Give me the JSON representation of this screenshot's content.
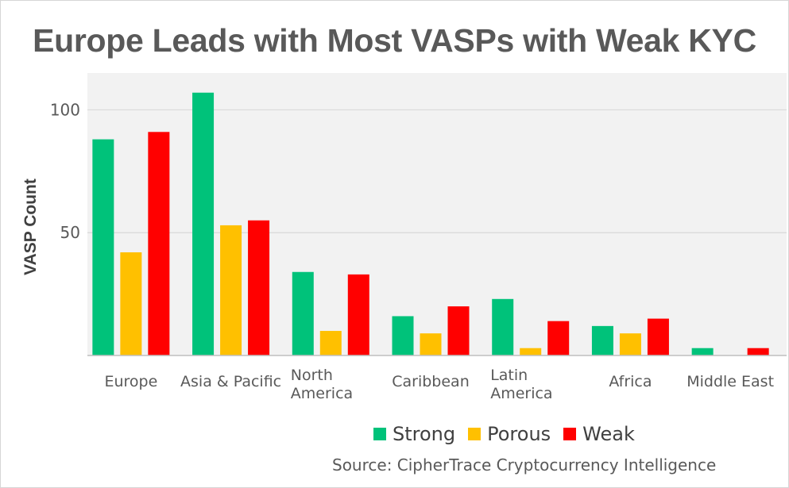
{
  "chart_data": {
    "type": "bar",
    "title": "Europe Leads with Most VASPs with Weak KYC",
    "ylabel": "VASP Count",
    "xlabel": "",
    "ylim": [
      0,
      115
    ],
    "yticks": [
      50,
      100
    ],
    "categories": [
      [
        "Europe"
      ],
      [
        "Asia & Pacific"
      ],
      [
        "North",
        "America"
      ],
      [
        "Caribbean"
      ],
      [
        "Latin",
        "America"
      ],
      [
        "Africa"
      ],
      [
        "Middle East"
      ]
    ],
    "series": [
      {
        "name": "Strong",
        "color": "#00c27a",
        "values": [
          88,
          107,
          34,
          16,
          23,
          12,
          3
        ]
      },
      {
        "name": "Porous",
        "color": "#ffc000",
        "values": [
          42,
          53,
          10,
          9,
          3,
          9,
          0
        ]
      },
      {
        "name": "Weak",
        "color": "#ff0000",
        "values": [
          91,
          55,
          33,
          20,
          14,
          15,
          3
        ]
      }
    ],
    "grid": true,
    "legend_position": "bottom-right",
    "source": "Source: CipherTrace Cryptocurrency Intelligence"
  }
}
